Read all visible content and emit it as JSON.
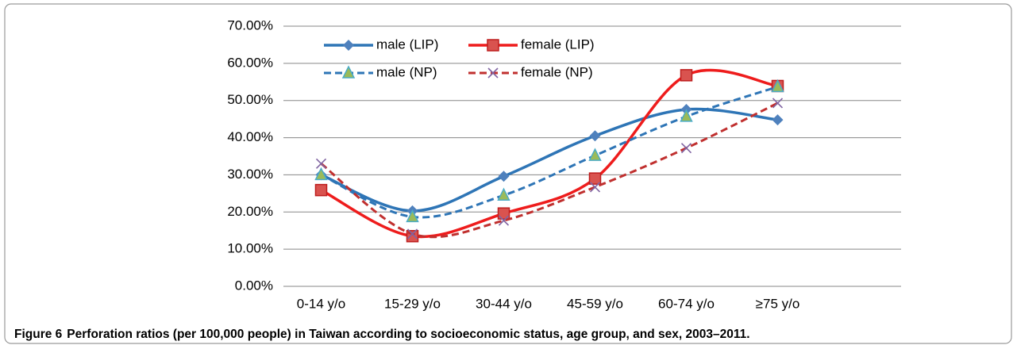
{
  "chart_data": {
    "type": "line",
    "categories": [
      "0-14 y/o",
      "15-29 y/o",
      "30-44 y/o",
      "45-59 y/o",
      "60-74 y/o",
      "≥75 y/o"
    ],
    "series": [
      {
        "name": "male (LIP)",
        "color": "#2e75b6",
        "marker_color": "#4f81bd",
        "marker": "diamond",
        "dash": false,
        "values": [
          30.0,
          20.3,
          29.6,
          40.5,
          47.6,
          44.8
        ]
      },
      {
        "name": "female (LIP)",
        "color": "#ee1c1c",
        "marker_color": "#d9534f",
        "marker": "square",
        "dash": false,
        "values": [
          25.9,
          13.5,
          19.6,
          29.0,
          56.8,
          53.9
        ]
      },
      {
        "name": "male (NP)",
        "color": "#2e75b6",
        "marker_color": "#9bbb59",
        "marker": "triangle",
        "dash": true,
        "values": [
          30.0,
          18.7,
          24.5,
          35.2,
          45.7,
          53.7
        ]
      },
      {
        "name": "female (NP)",
        "color": "#c0302f",
        "marker_color": "#8064a2",
        "marker": "x",
        "dash": true,
        "values": [
          33.0,
          14.1,
          17.7,
          26.7,
          37.2,
          49.3
        ]
      }
    ],
    "ylim": [
      0,
      70
    ],
    "yticks": [
      {
        "value": 0,
        "label": "0.00%"
      },
      {
        "value": 10,
        "label": "10.00%"
      },
      {
        "value": 20,
        "label": "20.00%"
      },
      {
        "value": 30,
        "label": "30.00%"
      },
      {
        "value": 40,
        "label": "40.00%"
      },
      {
        "value": 50,
        "label": "50.00%"
      },
      {
        "value": 60,
        "label": "60.00%"
      },
      {
        "value": 70,
        "label": "70.00%"
      }
    ],
    "grid": true,
    "smooth": true,
    "caption_label": "Figure 6",
    "caption": "Perforation ratios (per 100,000 people) in Taiwan according to socioeconomic status, age group, and sex, 2003–2011."
  }
}
